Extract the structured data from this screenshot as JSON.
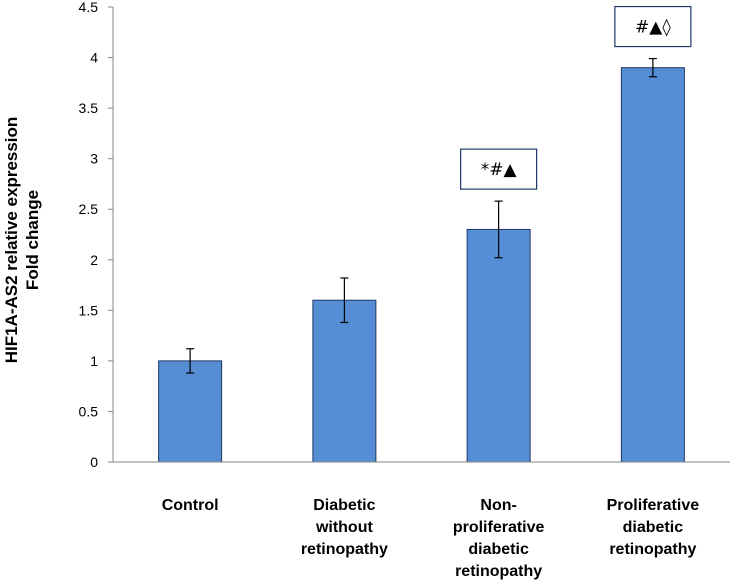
{
  "chart_data": {
    "type": "bar",
    "title": "",
    "xlabel": "",
    "ylabel": [
      "HIF1A-AS2 relative expression",
      "Fold change"
    ],
    "ylim": [
      0,
      4.5
    ],
    "yticks": [
      "0",
      "0.5",
      "1",
      "1.5",
      "2",
      "2.5",
      "3",
      "3.5",
      "4",
      "4.5"
    ],
    "categories": [
      [
        "Control"
      ],
      [
        "Diabetic",
        "without",
        "retinopathy"
      ],
      [
        "Non-",
        "proliferative",
        "diabetic",
        "retinopathy"
      ],
      [
        "Proliferative",
        "diabetic",
        "retinopathy"
      ]
    ],
    "values": [
      1.0,
      1.6,
      2.3,
      3.9
    ],
    "errors": [
      0.12,
      0.22,
      0.28,
      0.09
    ],
    "annotations": [
      "",
      "",
      "*#▲",
      "#▲◊"
    ],
    "colors": {
      "bar": "#558ed5",
      "bar_edge": "#1f3864",
      "axis": "#868686",
      "grid": "none"
    }
  }
}
